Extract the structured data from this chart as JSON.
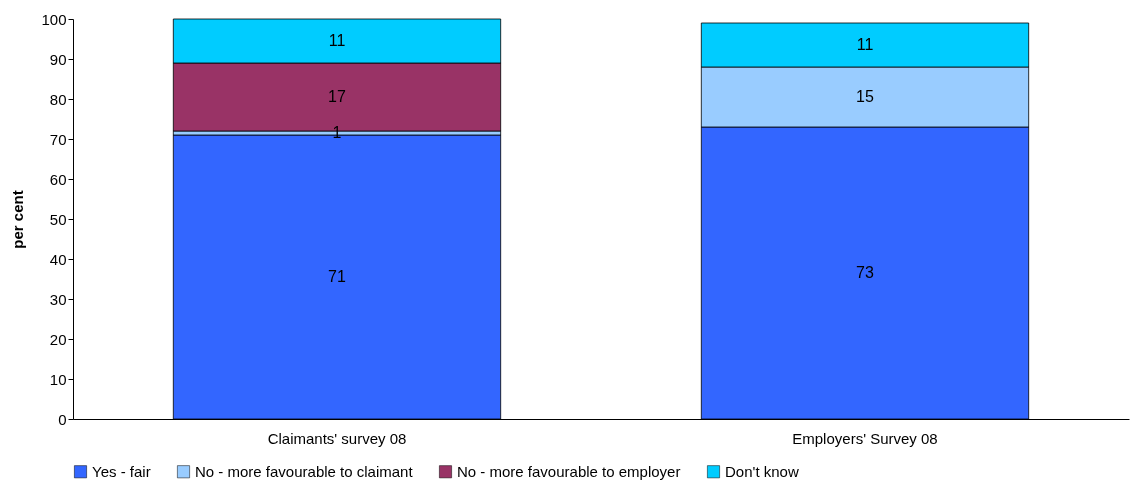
{
  "chart_data": {
    "type": "bar",
    "stacked": true,
    "ylabel": "per cent",
    "categories": [
      "Claimants' survey 08",
      "Employers' Survey 08"
    ],
    "series": [
      {
        "name": "Yes - fair",
        "color": "#3366ff",
        "values": [
          71,
          73
        ]
      },
      {
        "name": "No - more favourable to claimant",
        "color": "#99ccff",
        "values": [
          1,
          15
        ]
      },
      {
        "name": "No - more favourable to employer",
        "color": "#993366",
        "values": [
          17,
          null
        ]
      },
      {
        "name": "Don't know",
        "color": "#00ccff",
        "values": [
          11,
          11
        ]
      }
    ],
    "ylim": [
      0,
      100
    ],
    "yticks": [
      0,
      10,
      20,
      30,
      40,
      50,
      60,
      70,
      80,
      90,
      100
    ],
    "grid": false,
    "legend": "bottom",
    "data_labels": true
  }
}
